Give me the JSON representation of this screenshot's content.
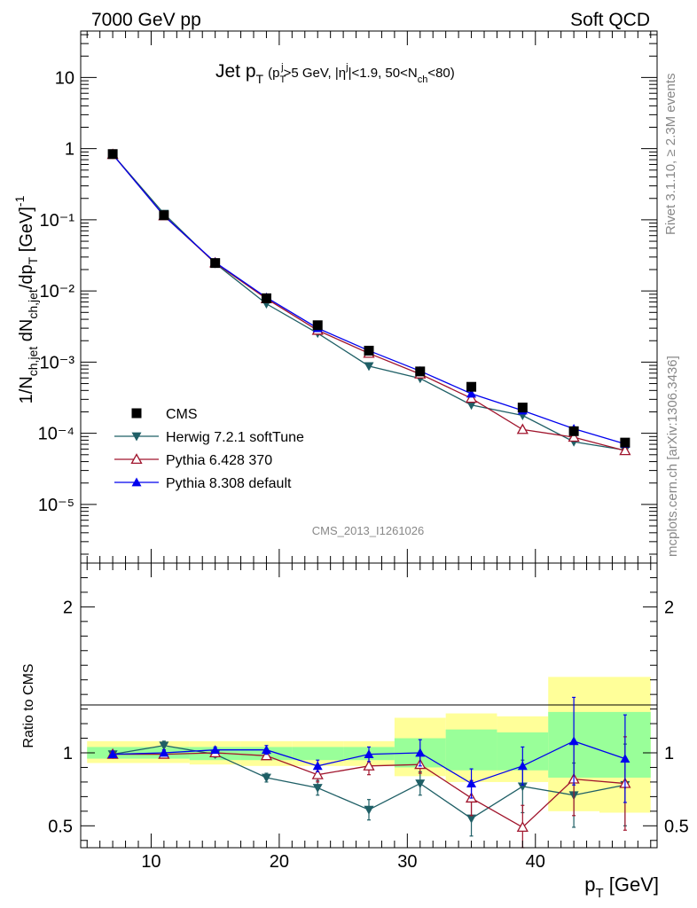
{
  "header": {
    "energy_label": "7000 GeV pp",
    "category_label": "Soft QCD"
  },
  "side_labels": {
    "rivet": "Rivet 3.1.10, ≥ 2.3M events",
    "mcplots": "mcplots.cern.ch [arXiv:1306.3436]"
  },
  "analysis_id": "CMS_2013_I1261026",
  "colors": {
    "cms": "#000000",
    "herwig": "#1f5f66",
    "pythia6": "#a0142c",
    "pythia8": "#0000ee",
    "band_yellow": "#ffff99",
    "band_green": "#99ff99"
  },
  "chart_data": [
    {
      "type": "scatter",
      "title": "Jet pT (pT^j>5 GeV, |η^j|<1.9, 50<Nch<80)",
      "title_main": "Jet p",
      "title_main_sub": "T",
      "title_cut": "(p",
      "title_cut_sub": "T",
      "title_cut_sup": "j",
      "title_cut_rest1": ">5 GeV, |η",
      "title_cut_rest1_sup": "j",
      "title_cut_rest2": "|<1.9, 50<N",
      "title_cut_rest2_sub": "ch",
      "title_cut_rest3": "<80)",
      "ylabel": "1/Nch,jet dNch,jet/dpT [GeV]^-1",
      "yscale": "log",
      "ylim": [
        1.5e-06,
        45
      ],
      "xlim": [
        4.5,
        49.5
      ],
      "y_tick_labels": [
        "10",
        "1",
        "10⁻¹",
        "10⁻²",
        "10⁻³",
        "10⁻⁴",
        "10⁻⁵"
      ],
      "x": [
        7,
        11,
        15,
        19,
        23,
        27,
        31,
        35,
        39,
        43,
        47
      ],
      "series": [
        {
          "name": "CMS",
          "marker": "square",
          "values": [
            0.84,
            0.116,
            0.0247,
            0.0079,
            0.0033,
            0.00145,
            0.00074,
            0.00045,
            0.00023,
            0.000107,
            7.4e-05
          ]
        },
        {
          "name": "Herwig 7.2.1 softTune",
          "marker": "triangle-down",
          "values": [
            0.83,
            0.122,
            0.0244,
            0.0066,
            0.00255,
            0.00088,
            0.00059,
            0.00025,
            0.000178,
            7.6e-05,
            5.8e-05
          ]
        },
        {
          "name": "Pythia 6.428 370",
          "marker": "triangle-up-open",
          "values": [
            0.83,
            0.114,
            0.0248,
            0.0078,
            0.0028,
            0.00133,
            0.00068,
            0.00031,
            0.000113,
            8.8e-05,
            5.7e-05
          ]
        },
        {
          "name": "Pythia 8.308 default",
          "marker": "triangle-up",
          "values": [
            0.83,
            0.114,
            0.0253,
            0.0081,
            0.003,
            0.00145,
            0.00075,
            0.00036,
            0.000209,
            0.000116,
            7.1e-05
          ]
        }
      ],
      "legend_position": "bottom-left"
    },
    {
      "type": "scatter",
      "ylabel": "Ratio to CMS",
      "xlabel": "pT [GeV]",
      "xlabel_main": "p",
      "xlabel_sub": "T",
      "xlabel_unit": " [GeV]",
      "ylim": [
        0.35,
        2.3
      ],
      "xlim": [
        4.5,
        49.5
      ],
      "y_tick_labels": [
        "2",
        "1",
        "0.5"
      ],
      "x_tick_labels": [
        "10",
        "20",
        "30",
        "40"
      ],
      "reference_line": 1.0,
      "x": [
        7,
        11,
        15,
        19,
        23,
        27,
        31,
        35,
        39,
        43,
        47
      ],
      "band_edges": [
        5,
        9,
        13,
        17,
        21,
        25,
        29,
        33,
        37,
        41,
        45,
        49
      ],
      "band_yellow": [
        [
          0.93,
          1.08
        ],
        [
          0.93,
          1.08
        ],
        [
          0.92,
          1.08
        ],
        [
          0.91,
          1.08
        ],
        [
          0.91,
          1.08
        ],
        [
          0.91,
          1.08
        ],
        [
          0.84,
          1.24
        ],
        [
          0.8,
          1.27
        ],
        [
          0.8,
          1.25
        ],
        [
          0.6,
          1.52
        ],
        [
          0.59,
          1.52
        ]
      ],
      "band_green": [
        [
          0.96,
          1.04
        ],
        [
          0.96,
          1.04
        ],
        [
          0.95,
          1.04
        ],
        [
          0.95,
          1.04
        ],
        [
          0.95,
          1.04
        ],
        [
          0.95,
          1.04
        ],
        [
          0.9,
          1.1
        ],
        [
          0.88,
          1.16
        ],
        [
          0.88,
          1.14
        ],
        [
          0.83,
          1.28
        ],
        [
          0.83,
          1.28
        ]
      ],
      "series": [
        {
          "name": "Herwig 7.2.1 softTune",
          "values": [
            0.99,
            1.05,
            0.99,
            0.83,
            0.76,
            0.61,
            0.79,
            0.55,
            0.77,
            0.71,
            0.78
          ],
          "errors": [
            0.02,
            0.03,
            0.02,
            0.03,
            0.05,
            0.07,
            0.08,
            0.12,
            0.18,
            0.22,
            0.28
          ]
        },
        {
          "name": "Pythia 6.428 370",
          "values": [
            0.99,
            0.99,
            1.0,
            0.98,
            0.85,
            0.91,
            0.92,
            0.69,
            0.49,
            0.82,
            0.79
          ],
          "errors": [
            0.02,
            0.02,
            0.02,
            0.02,
            0.05,
            0.06,
            0.06,
            0.12,
            0.15,
            0.25,
            0.32
          ]
        },
        {
          "name": "Pythia 8.308 default",
          "values": [
            0.99,
            1.0,
            1.02,
            1.02,
            0.91,
            0.99,
            1.0,
            0.79,
            0.91,
            1.08,
            0.96
          ],
          "errors": [
            0.02,
            0.02,
            0.02,
            0.03,
            0.04,
            0.05,
            0.09,
            0.1,
            0.13,
            0.3,
            0.3
          ]
        }
      ]
    }
  ]
}
